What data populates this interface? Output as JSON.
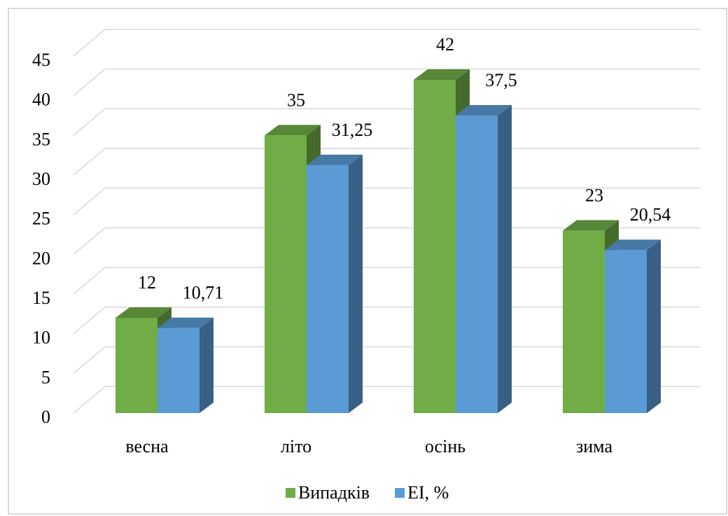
{
  "chart_data": {
    "type": "bar3d",
    "categories": [
      "весна",
      "літо",
      "осінь",
      "зима"
    ],
    "series": [
      {
        "name": "Випадків",
        "color": "#70ad47",
        "values": [
          12,
          35,
          42,
          23
        ]
      },
      {
        "name": "ЕІ, %",
        "color": "#5b9bd5",
        "values": [
          10.71,
          31.25,
          37.5,
          20.54
        ],
        "value_labels": [
          "10,71",
          "31,25",
          "37,5",
          "20,54"
        ]
      }
    ],
    "ylim": [
      0,
      45
    ],
    "yticks": [
      0,
      5,
      10,
      15,
      20,
      25,
      30,
      35,
      40,
      45
    ],
    "grid": true,
    "legend": "bottom"
  }
}
